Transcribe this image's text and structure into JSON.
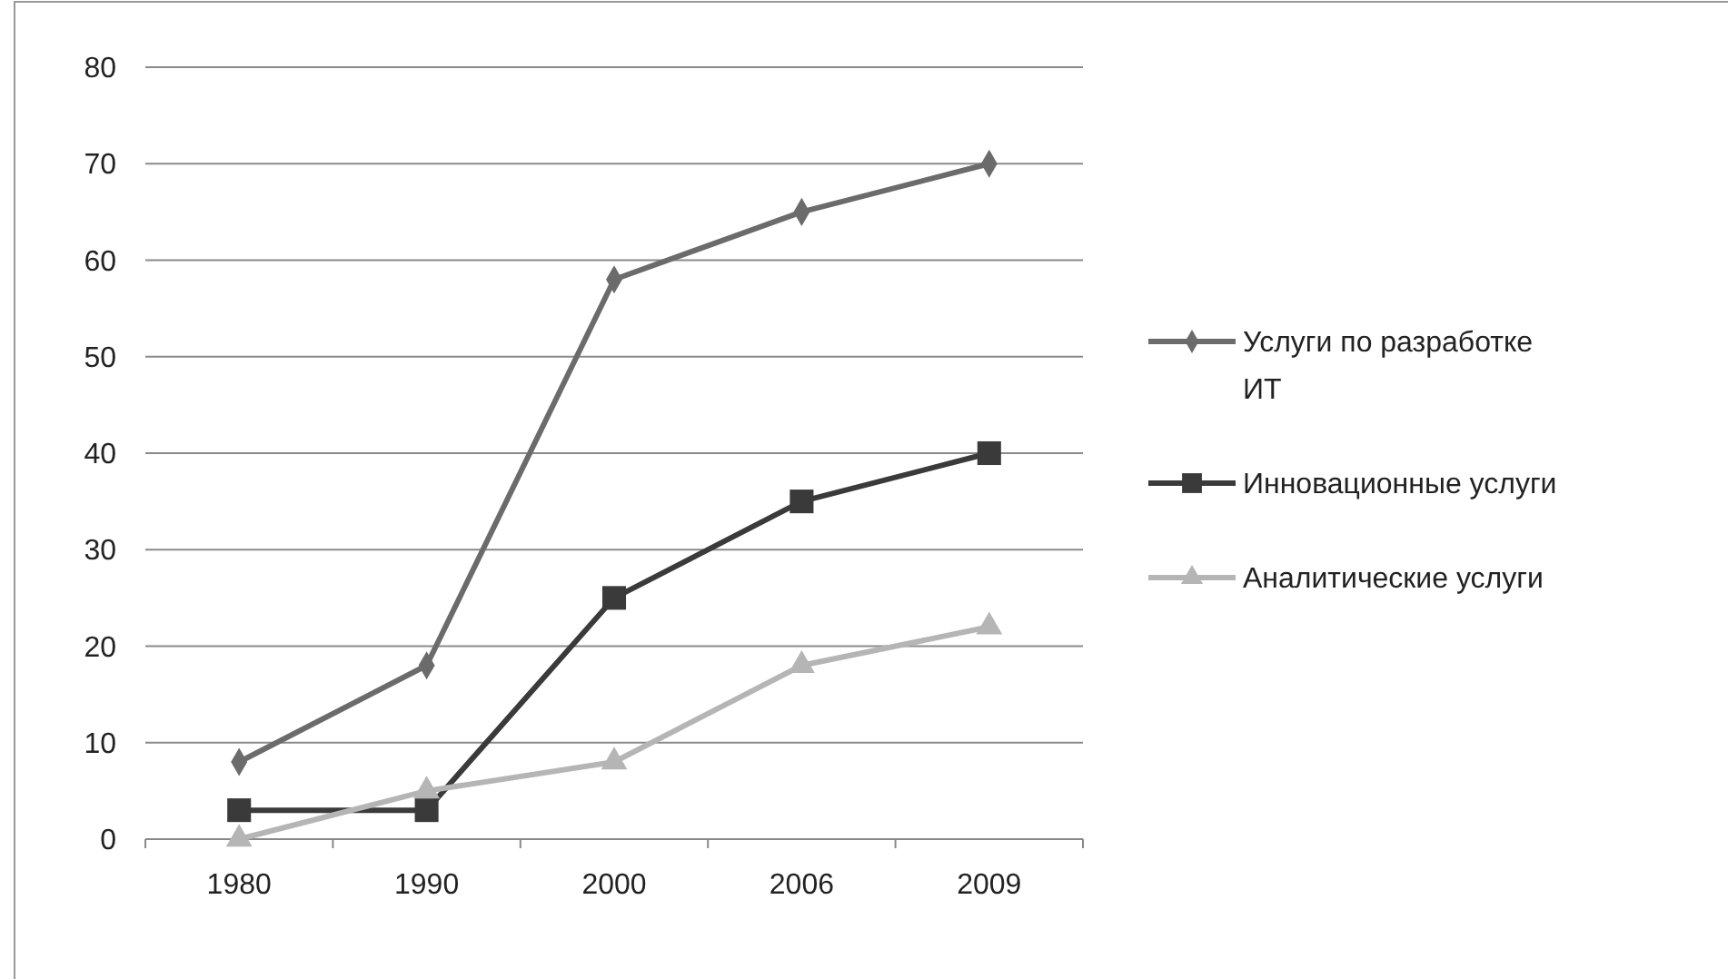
{
  "chart_data": {
    "type": "line",
    "categories": [
      "1980",
      "1990",
      "2000",
      "2006",
      "2009"
    ],
    "series": [
      {
        "name": "Услуги по  разработке ИТ",
        "color": "#6b6b6b",
        "marker": "diamond",
        "values": [
          8,
          18,
          58,
          65,
          70
        ]
      },
      {
        "name": "Инновационные услуги",
        "color": "#3a3a3a",
        "marker": "square",
        "values": [
          3,
          3,
          25,
          35,
          40
        ]
      },
      {
        "name": "Аналитические услуги",
        "color": "#b5b5b5",
        "marker": "triangle",
        "values": [
          0,
          5,
          8,
          18,
          22
        ]
      }
    ],
    "ylim": [
      0,
      80
    ],
    "yticks": [
      0,
      10,
      20,
      30,
      40,
      50,
      60,
      70,
      80
    ],
    "grid": "y",
    "legend": "right"
  }
}
